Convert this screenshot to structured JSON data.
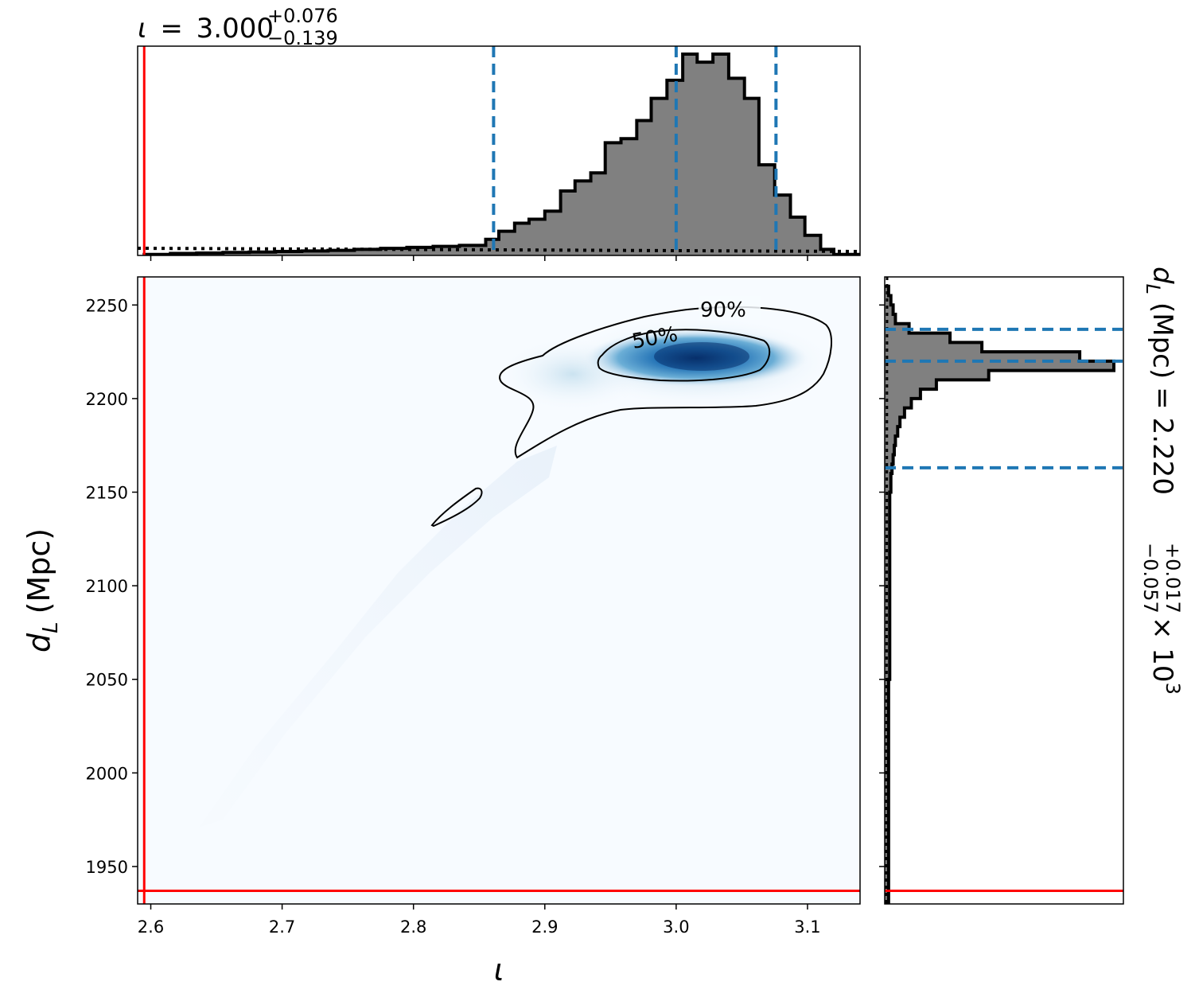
{
  "chart_data": {
    "type": "corner-plot",
    "top_title": {
      "symbol": "ι",
      "equals": "=",
      "median": "3.000",
      "upper": "+0.076",
      "lower": "−0.139"
    },
    "right_title": {
      "symbol": "d",
      "sub": "L",
      "unit": "(Mpc)",
      "equals": "=",
      "median": "2.220",
      "upper": "+0.017",
      "lower": "−0.057",
      "multiplier": "× 10",
      "exponent": "3"
    },
    "xlabel": {
      "symbol": "ι"
    },
    "ylabel": {
      "symbol": "d",
      "sub": "L",
      "unit": "(Mpc)"
    },
    "x_ticks": [
      "2.6",
      "2.7",
      "2.8",
      "2.9",
      "3.0",
      "3.1"
    ],
    "x_tick_values": [
      2.6,
      2.7,
      2.8,
      2.9,
      3.0,
      3.1
    ],
    "y_ticks": [
      "1950",
      "2000",
      "2050",
      "2100",
      "2150",
      "2200",
      "2250"
    ],
    "y_tick_values": [
      1950,
      2000,
      2050,
      2100,
      2150,
      2200,
      2250
    ],
    "xlim": [
      2.59,
      3.14
    ],
    "ylim": [
      1930,
      2265
    ],
    "true_value": {
      "iota": 2.595,
      "dL": 1937,
      "color": "#ff0000"
    },
    "quantile_color": "#1f77b4",
    "iota_quantiles": [
      2.861,
      3.0,
      3.076
    ],
    "dL_quantiles": [
      2163,
      2220,
      2237
    ],
    "contour_labels": [
      "50%",
      "90%"
    ],
    "iota_histogram": {
      "bin_edges": [
        2.595,
        2.615,
        2.635,
        2.655,
        2.675,
        2.695,
        2.715,
        2.735,
        2.755,
        2.775,
        2.795,
        2.815,
        2.835,
        2.855,
        2.865,
        2.877,
        2.888,
        2.9,
        2.912,
        2.923,
        2.935,
        2.946,
        2.958,
        2.97,
        2.981,
        2.993,
        3.005,
        3.016,
        3.028,
        3.04,
        3.052,
        3.063,
        3.075,
        3.087,
        3.098,
        3.11,
        3.12,
        3.14
      ],
      "counts": [
        0.005,
        0.01,
        0.012,
        0.015,
        0.017,
        0.02,
        0.022,
        0.025,
        0.03,
        0.035,
        0.04,
        0.045,
        0.05,
        0.08,
        0.12,
        0.16,
        0.18,
        0.22,
        0.32,
        0.37,
        0.41,
        0.56,
        0.58,
        0.67,
        0.78,
        0.87,
        1.0,
        0.96,
        1.0,
        0.88,
        0.78,
        0.45,
        0.3,
        0.19,
        0.1,
        0.03,
        0.005
      ]
    },
    "dL_histogram": {
      "bin_edges": [
        1930,
        1945,
        2050,
        2150,
        2160,
        2165,
        2170,
        2175,
        2180,
        2185,
        2190,
        2195,
        2200,
        2205,
        2210,
        2215,
        2220,
        2225,
        2230,
        2235,
        2240,
        2245,
        2250,
        2255,
        2260
      ],
      "counts": [
        0.01,
        0.01,
        0.015,
        0.02,
        0.025,
        0.03,
        0.035,
        0.04,
        0.05,
        0.06,
        0.08,
        0.11,
        0.15,
        0.22,
        0.45,
        1.0,
        0.85,
        0.42,
        0.28,
        0.1,
        0.04,
        0.03,
        0.02,
        0.01
      ]
    }
  }
}
